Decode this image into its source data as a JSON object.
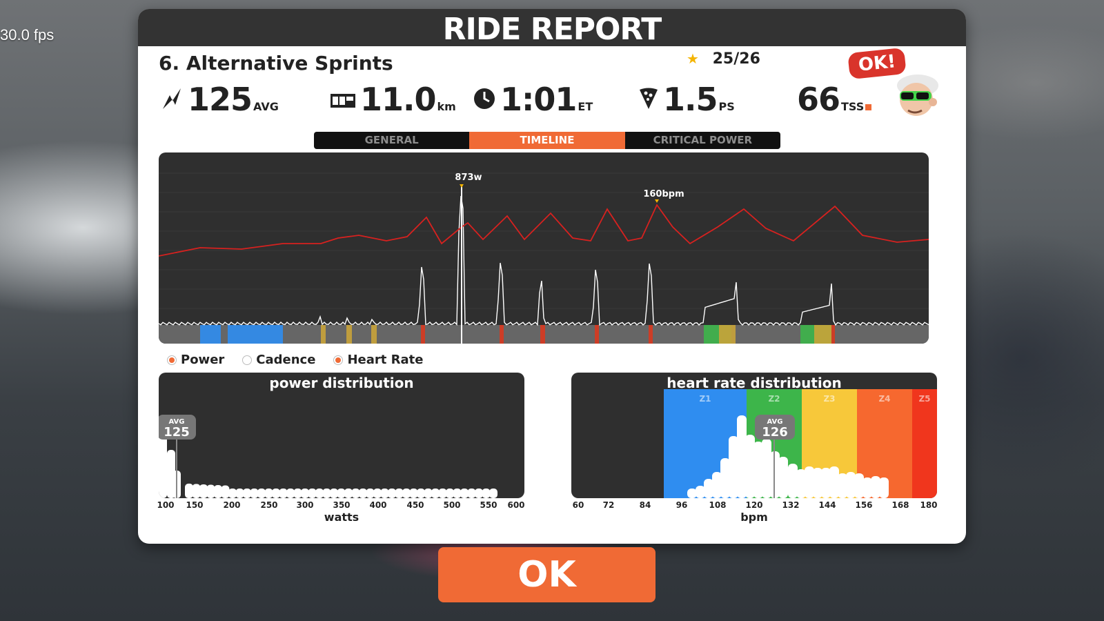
{
  "overlay": {
    "fps": "30.0 fps"
  },
  "modal": {
    "title": "RIDE REPORT",
    "workout_title": "6. Alternative Sprints",
    "rating": "25/26",
    "stats": {
      "power": {
        "value": "125",
        "unit": "AVG",
        "icon": "power-icon"
      },
      "distance": {
        "value": "11.0",
        "unit": "km",
        "icon": "odometer-icon"
      },
      "time": {
        "value": "1:01",
        "unit": "ET",
        "icon": "clock-icon"
      },
      "pizza": {
        "value": "1.5",
        "unit": "PS",
        "icon": "pizza-icon"
      },
      "tss": {
        "value": "66",
        "unit": "TSS"
      }
    },
    "badge": "OK!",
    "tabs": [
      {
        "label": "GENERAL",
        "active": false
      },
      {
        "label": "TIMELINE",
        "active": true
      },
      {
        "label": "CRITICAL POWER",
        "active": false
      }
    ],
    "timeline": {
      "peak_power_label": "873w",
      "peak_hr_label": "160bpm"
    },
    "legend": [
      {
        "label": "Power",
        "checked": true
      },
      {
        "label": "Cadence",
        "checked": false
      },
      {
        "label": "Heart Rate",
        "checked": true
      }
    ],
    "power_distribution": {
      "title": "power distribution",
      "avg_label": "AVG",
      "avg_value": "125",
      "ticks": [
        "100",
        "150",
        "200",
        "250",
        "300",
        "350",
        "400",
        "450",
        "500",
        "550",
        "600"
      ],
      "xlabel": "watts"
    },
    "hr_distribution": {
      "title": "heart rate distribution",
      "avg_label": "AVG",
      "avg_value": "126",
      "zones": [
        "Z1",
        "Z2",
        "Z3",
        "Z4",
        "Z5"
      ],
      "ticks": [
        "60",
        "72",
        "84",
        "96",
        "108",
        "120",
        "132",
        "144",
        "156",
        "168",
        "180"
      ],
      "xlabel": "bpm"
    },
    "ok_button": "OK"
  },
  "colors": {
    "accent": "#f06a35",
    "dark_panel": "#2f2f2f",
    "hr_line": "#d8211f",
    "zone_blue": "#2f8df0",
    "zone_green": "#3db54a",
    "zone_yellow": "#f7c83a",
    "zone_orange": "#f6682f",
    "zone_red": "#f0361d"
  }
}
